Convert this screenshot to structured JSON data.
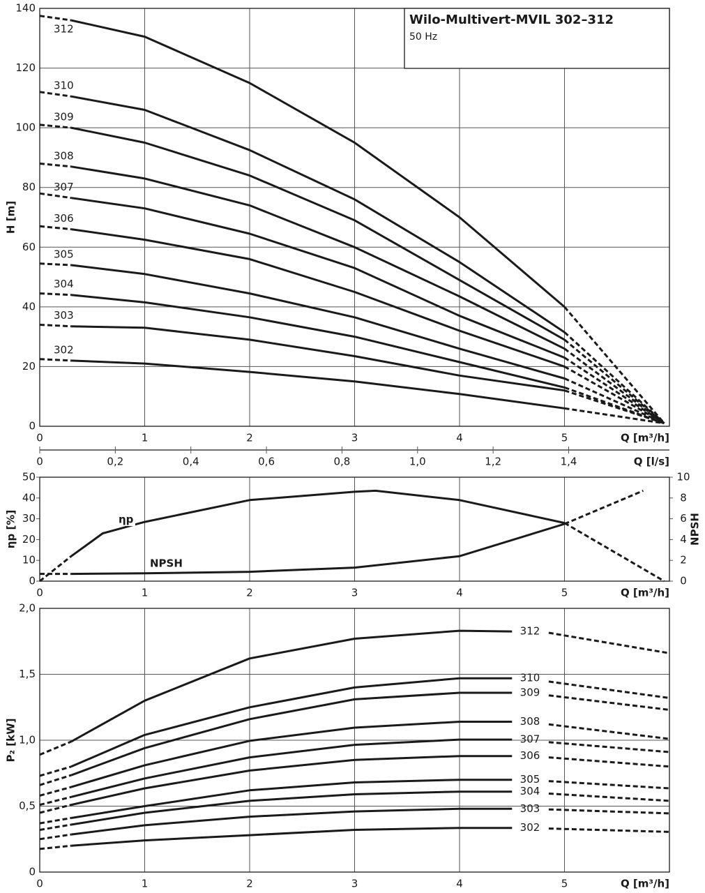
{
  "chart_data": [
    {
      "type": "line",
      "title": "Wilo-Multivert-MVIL 302–312",
      "subtitle": "50 Hz",
      "x_label": "Q [m³/h]",
      "y_label": "H [m]",
      "x2_label": "Q [l/s]",
      "x": [
        0,
        0.3,
        1,
        2,
        3,
        4,
        5,
        5.95
      ],
      "xlim": [
        0,
        6
      ],
      "xticks": [
        0,
        1,
        2,
        3,
        4,
        5
      ],
      "x2lim": [
        0,
        1.6667
      ],
      "x2ticks": [
        0,
        {
          "value": 0.2,
          "label": "0,2"
        },
        {
          "value": 0.4,
          "label": "0,4"
        },
        {
          "value": 0.6,
          "label": "0,6"
        },
        {
          "value": 0.8,
          "label": "0,8"
        },
        {
          "value": 1.0,
          "label": "1,0"
        },
        {
          "value": 1.2,
          "label": "1,2"
        },
        {
          "value": 1.4,
          "label": "1,4"
        }
      ],
      "ylim": [
        0,
        140
      ],
      "yticks": [
        0,
        20,
        40,
        60,
        80,
        100,
        120,
        140
      ],
      "grid": "xy",
      "color": "#1a1a1a",
      "solid_range": [
        0.3,
        5
      ],
      "series": [
        {
          "name": "312",
          "values": [
            137.5,
            136,
            130.5,
            115,
            95,
            70,
            40,
            1
          ]
        },
        {
          "name": "310",
          "values": [
            112,
            110.5,
            106,
            92.5,
            76,
            55,
            31.5,
            1
          ]
        },
        {
          "name": "309",
          "values": [
            101,
            100,
            95,
            84,
            69,
            49,
            29,
            1
          ]
        },
        {
          "name": "308",
          "values": [
            88,
            87,
            83,
            74,
            60,
            43.5,
            26,
            1
          ]
        },
        {
          "name": "307",
          "values": [
            78,
            76.5,
            73,
            64.5,
            53,
            37,
            23,
            1
          ]
        },
        {
          "name": "306",
          "values": [
            67,
            66,
            62.5,
            56,
            45,
            32,
            20,
            1
          ]
        },
        {
          "name": "305",
          "values": [
            54.5,
            54,
            51,
            44.5,
            36.5,
            26,
            16,
            1
          ]
        },
        {
          "name": "304",
          "values": [
            44.5,
            44,
            41.5,
            36.5,
            30,
            21.5,
            13,
            1
          ]
        },
        {
          "name": "303",
          "values": [
            34,
            33.5,
            33,
            29,
            23.5,
            17,
            12,
            1
          ]
        },
        {
          "name": "302",
          "values": [
            22.5,
            22,
            21,
            18.2,
            15,
            10.8,
            6,
            1
          ]
        }
      ]
    },
    {
      "type": "line",
      "x_label": "Q [m³/h]",
      "y_label": "ηp [%]",
      "y2_label": "NPSH",
      "xlim": [
        0,
        6
      ],
      "xticks": [
        0,
        1,
        2,
        3,
        4,
        5
      ],
      "ylim": [
        0,
        50
      ],
      "yticks": [
        0,
        10,
        20,
        30,
        40,
        50
      ],
      "y2lim": [
        0,
        10
      ],
      "y2ticks": [
        0,
        2,
        4,
        6,
        8,
        10
      ],
      "grid": "x",
      "color": "#1a1a1a",
      "solid_range": [
        0.3,
        5
      ],
      "series": [
        {
          "name": "ηp",
          "x": [
            0,
            0.3,
            0.6,
            1,
            2,
            3,
            3.2,
            4,
            5,
            5.95
          ],
          "values": [
            0,
            12,
            23,
            28.5,
            39,
            43,
            43.5,
            39,
            28,
            0
          ]
        },
        {
          "name": "NPSH",
          "axis": "y2",
          "x": [
            0,
            0.3,
            1,
            2,
            3,
            4,
            5,
            5.75
          ],
          "values": [
            0.7,
            0.7,
            0.75,
            0.9,
            1.3,
            2.4,
            5.5,
            8.7
          ]
        }
      ]
    },
    {
      "type": "line",
      "x_label": "Q [m³/h]",
      "y_label": "P₂ [kW]",
      "x": [
        0,
        0.3,
        1,
        2,
        3,
        4,
        4.5,
        4.7,
        4.85,
        6
      ],
      "xlim": [
        0,
        6
      ],
      "xticks": [
        0,
        1,
        2,
        3,
        4,
        5
      ],
      "ylim": [
        0,
        2
      ],
      "yticks": [
        0,
        {
          "value": 0.5,
          "label": "0,5"
        },
        {
          "value": 1,
          "label": "1,0"
        },
        {
          "value": 1.5,
          "label": "1,5"
        },
        {
          "value": 2,
          "label": "2,0"
        }
      ],
      "grid": "xy",
      "color": "#1a1a1a",
      "solid_range": [
        0.3,
        4.5
      ],
      "series": [
        {
          "name": "312",
          "values": [
            0.89,
            0.99,
            1.3,
            1.62,
            1.77,
            1.83,
            1.825,
            null,
            1.815,
            1.66
          ]
        },
        {
          "name": "310",
          "values": [
            0.73,
            0.8,
            1.04,
            1.25,
            1.4,
            1.47,
            1.47,
            null,
            1.445,
            1.32
          ]
        },
        {
          "name": "309",
          "values": [
            0.66,
            0.735,
            0.94,
            1.16,
            1.31,
            1.36,
            1.36,
            null,
            1.34,
            1.23
          ]
        },
        {
          "name": "308",
          "values": [
            0.58,
            0.645,
            0.81,
            0.995,
            1.095,
            1.14,
            1.14,
            null,
            1.12,
            1.01
          ]
        },
        {
          "name": "307",
          "values": [
            0.51,
            0.57,
            0.71,
            0.87,
            0.965,
            1.005,
            1.005,
            null,
            0.985,
            0.91
          ]
        },
        {
          "name": "306",
          "values": [
            0.45,
            0.51,
            0.635,
            0.77,
            0.85,
            0.88,
            0.88,
            null,
            0.87,
            0.8
          ]
        },
        {
          "name": "305",
          "values": [
            0.37,
            0.41,
            0.5,
            0.62,
            0.68,
            0.7,
            0.7,
            null,
            0.69,
            0.635
          ]
        },
        {
          "name": "304",
          "values": [
            0.32,
            0.36,
            0.45,
            0.54,
            0.59,
            0.61,
            0.61,
            null,
            0.595,
            0.54
          ]
        },
        {
          "name": "303",
          "values": [
            0.25,
            0.285,
            0.355,
            0.42,
            0.46,
            0.48,
            0.48,
            null,
            0.475,
            0.445
          ]
        },
        {
          "name": "302",
          "values": [
            0.175,
            0.2,
            0.24,
            0.28,
            0.32,
            0.335,
            0.335,
            null,
            0.33,
            0.305
          ]
        }
      ]
    }
  ]
}
